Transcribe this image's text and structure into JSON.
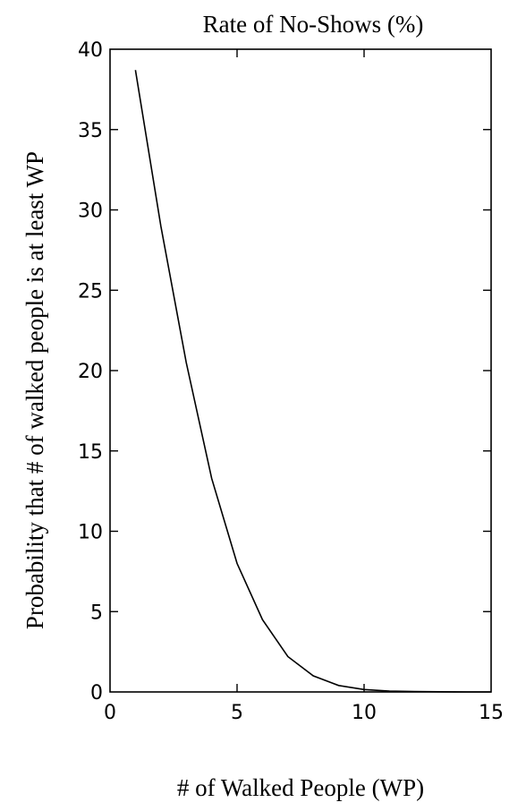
{
  "chart_data": {
    "type": "line",
    "title": "Rate of No-Shows (%)",
    "xlabel": "# of Walked People (WP)",
    "ylabel": "Probability that # of walked people is at least WP",
    "xlim": [
      0,
      15
    ],
    "ylim": [
      0,
      40
    ],
    "x_ticks": [
      "0",
      "5",
      "10",
      "15"
    ],
    "y_ticks": [
      "0",
      "5",
      "10",
      "15",
      "20",
      "25",
      "30",
      "35",
      "40"
    ],
    "grid": false,
    "legend": "none",
    "series": [
      {
        "x": [
          1,
          2,
          3,
          4,
          5,
          6,
          7,
          8,
          9,
          10,
          11,
          12,
          13,
          14,
          15
        ],
        "y": [
          38.7,
          29.0,
          20.5,
          13.3,
          8.0,
          4.5,
          2.2,
          1.0,
          0.4,
          0.15,
          0.05,
          0.02,
          0.01,
          0.0,
          0.0
        ]
      }
    ]
  }
}
